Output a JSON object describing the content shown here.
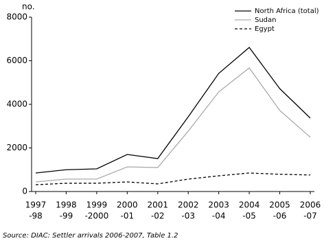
{
  "chart_data": {
    "type": "line",
    "y_label": "no.",
    "source": "Source: DIAC: Settler arrivals 2006-2007, Table 1.2",
    "categories": [
      [
        "1997",
        "-98"
      ],
      [
        "1998",
        "-99"
      ],
      [
        "1999",
        "-2000"
      ],
      [
        "2000",
        "-01"
      ],
      [
        "2001",
        "-02"
      ],
      [
        "2002",
        "-03"
      ],
      [
        "2003",
        "-04"
      ],
      [
        "2004",
        "-05"
      ],
      [
        "2005",
        "-06"
      ],
      [
        "2006",
        "-07"
      ]
    ],
    "series": [
      {
        "name": "North Africa (total)",
        "color": "#000000",
        "style": "solid",
        "values": [
          850,
          1000,
          1040,
          1700,
          1510,
          3430,
          5420,
          6610,
          4720,
          3370
        ]
      },
      {
        "name": "Sudan",
        "color": "#aaaaaa",
        "style": "solid",
        "values": [
          440,
          570,
          570,
          1130,
          1100,
          2770,
          4570,
          5670,
          3720,
          2490
        ]
      },
      {
        "name": "Egypt",
        "color": "#000000",
        "style": "dashed",
        "values": [
          310,
          380,
          380,
          440,
          350,
          570,
          720,
          850,
          790,
          760
        ]
      }
    ],
    "ylim": [
      0,
      8000
    ],
    "yticks": [
      0,
      2000,
      4000,
      6000,
      8000
    ],
    "legend": "upper right"
  }
}
